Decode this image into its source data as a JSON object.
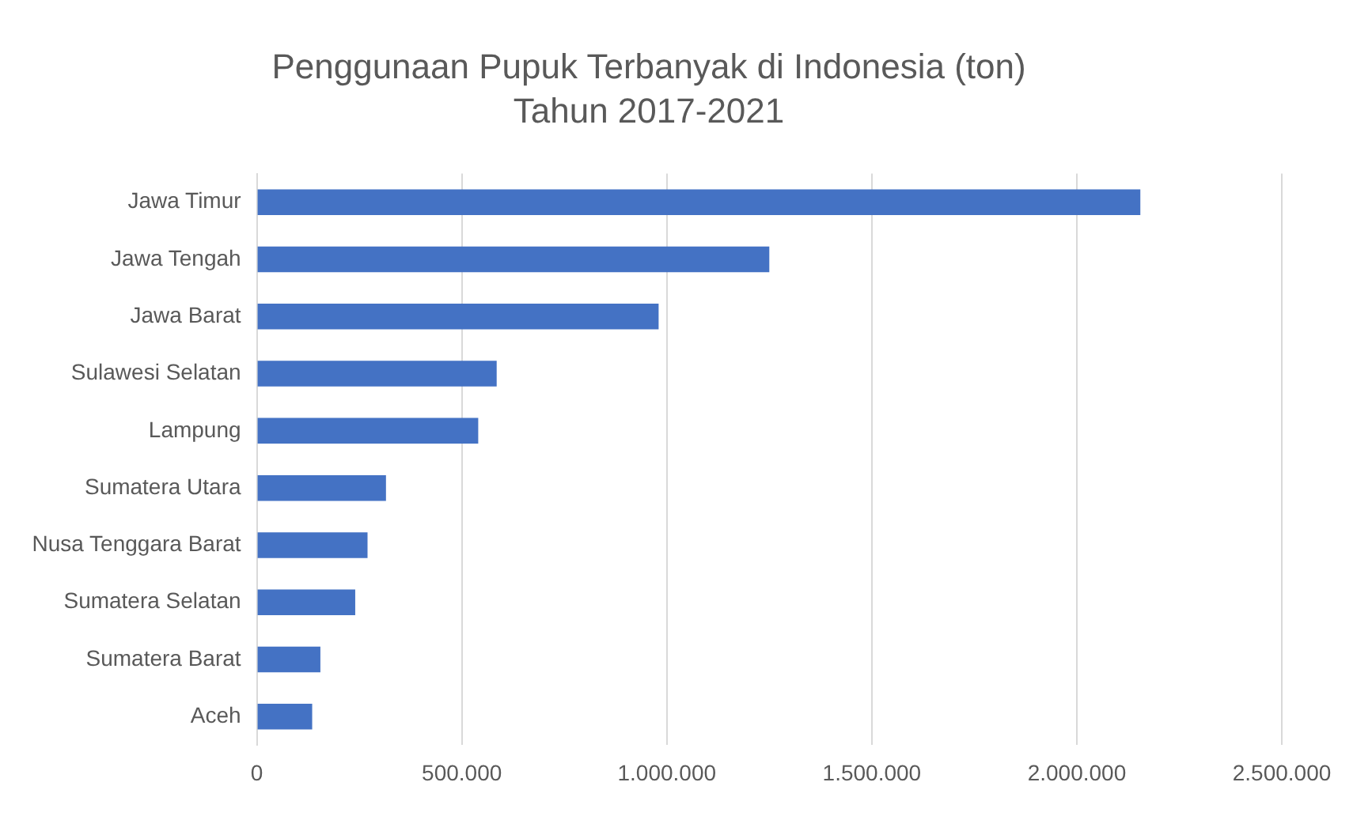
{
  "chart_data": {
    "type": "bar",
    "orientation": "horizontal",
    "title": "Penggunaan Pupuk Terbanyak di Indonesia (ton)",
    "subtitle": "Tahun 2017-2021",
    "categories": [
      "Jawa Timur",
      "Jawa Tengah",
      "Jawa Barat",
      "Sulawesi Selatan",
      "Lampung",
      "Sumatera Utara",
      "Nusa Tenggara Barat",
      "Sumatera Selatan",
      "Sumatera Barat",
      "Aceh"
    ],
    "values": [
      2155000,
      1250000,
      980000,
      585000,
      540000,
      315000,
      270000,
      240000,
      155000,
      135000
    ],
    "color": "#4472c4",
    "xlim": [
      0,
      2500000
    ],
    "xticks": [
      {
        "value": 0,
        "label": "0"
      },
      {
        "value": 500000,
        "label": "500.000"
      },
      {
        "value": 1000000,
        "label": "1.000.000"
      },
      {
        "value": 1500000,
        "label": "1.500.000"
      },
      {
        "value": 2000000,
        "label": "2.000.000"
      },
      {
        "value": 2500000,
        "label": "2.500.000"
      }
    ],
    "grid": "x",
    "legend": false
  }
}
